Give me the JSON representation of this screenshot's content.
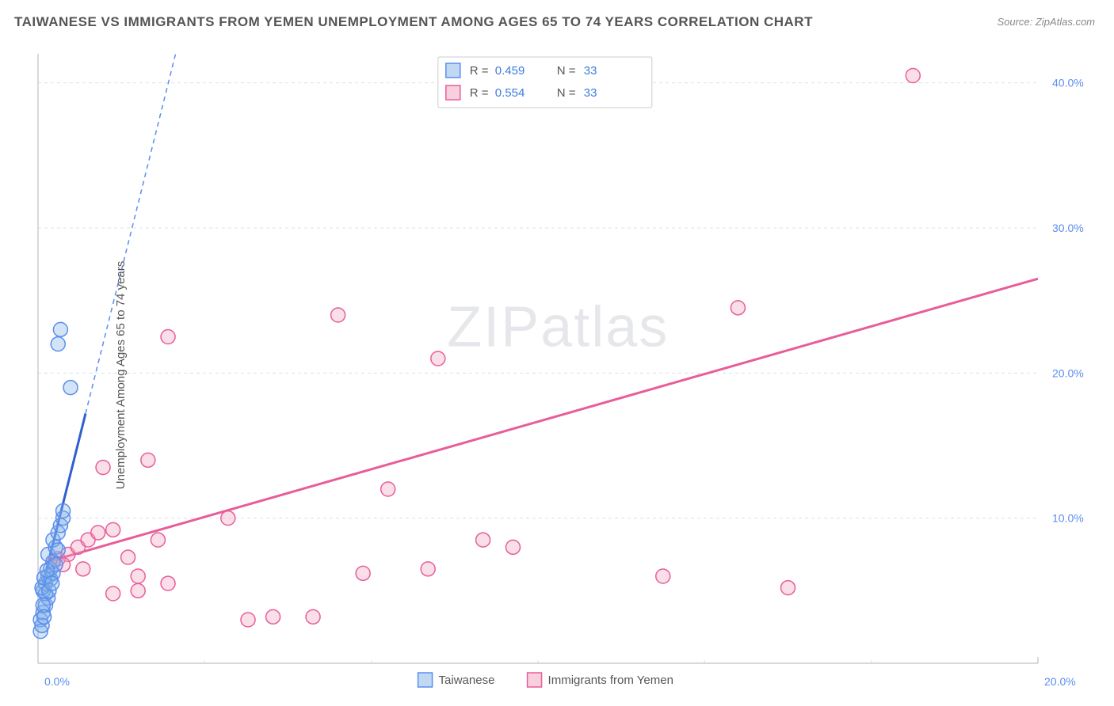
{
  "title": "TAIWANESE VS IMMIGRANTS FROM YEMEN UNEMPLOYMENT AMONG AGES 65 TO 74 YEARS CORRELATION CHART",
  "source": "Source: ZipAtlas.com",
  "ylabel": "Unemployment Among Ages 65 to 74 years",
  "watermark_part1": "ZIP",
  "watermark_part2": "atlas",
  "chart": {
    "type": "scatter",
    "background_color": "#ffffff",
    "grid_color": "#e0e0e0",
    "axis_color": "#cccccc",
    "tick_label_color": "#5b8def",
    "xlim": [
      0,
      20
    ],
    "ylim": [
      0,
      42
    ],
    "x_ticks": [
      0,
      20
    ],
    "x_tick_labels": [
      "0.0%",
      "20.0%"
    ],
    "x_minor_grid": [
      3.33,
      6.67,
      10,
      13.33,
      16.67
    ],
    "y_ticks": [
      10,
      20,
      30,
      40
    ],
    "y_tick_labels": [
      "10.0%",
      "20.0%",
      "30.0%",
      "40.0%"
    ],
    "marker_radius": 9,
    "series": [
      {
        "name": "Taiwanese",
        "color_fill": "rgba(130,177,230,0.35)",
        "color_stroke": "#5b8def",
        "R": 0.459,
        "N": 33,
        "trend": {
          "x0": 0.1,
          "y0": 5.5,
          "x1": 0.95,
          "y1": 17.2,
          "extend_to_y": 42
        },
        "points": [
          [
            0.05,
            3.0
          ],
          [
            0.1,
            3.5
          ],
          [
            0.15,
            4.0
          ],
          [
            0.2,
            4.5
          ],
          [
            0.1,
            5.0
          ],
          [
            0.15,
            5.5
          ],
          [
            0.2,
            6.0
          ],
          [
            0.25,
            6.5
          ],
          [
            0.3,
            7.0
          ],
          [
            0.2,
            7.5
          ],
          [
            0.35,
            8.0
          ],
          [
            0.3,
            8.5
          ],
          [
            0.4,
            9.0
          ],
          [
            0.45,
            9.5
          ],
          [
            0.5,
            10.0
          ],
          [
            0.25,
            5.8
          ],
          [
            0.3,
            6.2
          ],
          [
            0.35,
            6.8
          ],
          [
            0.15,
            4.8
          ],
          [
            0.1,
            4.0
          ],
          [
            0.5,
            10.5
          ],
          [
            0.4,
            7.8
          ],
          [
            0.65,
            19.0
          ],
          [
            0.45,
            23.0
          ],
          [
            0.4,
            22.0
          ],
          [
            0.08,
            5.2
          ],
          [
            0.12,
            5.9
          ],
          [
            0.18,
            6.4
          ],
          [
            0.22,
            5.0
          ],
          [
            0.28,
            5.5
          ],
          [
            0.05,
            2.2
          ],
          [
            0.08,
            2.6
          ],
          [
            0.12,
            3.2
          ]
        ]
      },
      {
        "name": "Immigrants from Yemen",
        "color_fill": "rgba(240,160,190,0.35)",
        "color_stroke": "#e85d9a",
        "R": 0.554,
        "N": 33,
        "trend": {
          "x0": 0.2,
          "y0": 7.0,
          "x1": 20.0,
          "y1": 26.5
        },
        "points": [
          [
            0.3,
            7.0
          ],
          [
            0.4,
            7.2
          ],
          [
            0.6,
            7.5
          ],
          [
            0.8,
            8.0
          ],
          [
            1.0,
            8.5
          ],
          [
            1.2,
            9.0
          ],
          [
            1.5,
            9.2
          ],
          [
            1.8,
            7.3
          ],
          [
            2.0,
            6.0
          ],
          [
            2.2,
            14.0
          ],
          [
            2.4,
            8.5
          ],
          [
            2.6,
            22.5
          ],
          [
            1.5,
            4.8
          ],
          [
            2.0,
            5.0
          ],
          [
            2.6,
            5.5
          ],
          [
            3.8,
            10.0
          ],
          [
            4.2,
            3.0
          ],
          [
            4.7,
            3.2
          ],
          [
            5.5,
            3.2
          ],
          [
            6.0,
            24.0
          ],
          [
            6.5,
            6.2
          ],
          [
            7.0,
            12.0
          ],
          [
            7.8,
            6.5
          ],
          [
            8.0,
            21.0
          ],
          [
            8.9,
            8.5
          ],
          [
            9.5,
            8.0
          ],
          [
            12.5,
            6.0
          ],
          [
            14.0,
            24.5
          ],
          [
            15.0,
            5.2
          ],
          [
            17.5,
            40.5
          ],
          [
            0.5,
            6.8
          ],
          [
            0.9,
            6.5
          ],
          [
            1.3,
            13.5
          ]
        ]
      }
    ],
    "top_legend": {
      "rows": [
        {
          "swatch_class": "swatch-blue",
          "R_label": "R =",
          "R": "0.459",
          "N_label": "N =",
          "N": "33"
        },
        {
          "swatch_class": "swatch-pink",
          "R_label": "R =",
          "R": "0.554",
          "N_label": "N =",
          "N": "33"
        }
      ]
    },
    "bottom_legend": {
      "items": [
        {
          "swatch_class": "swatch-blue",
          "label": "Taiwanese"
        },
        {
          "swatch_class": "swatch-pink",
          "label": "Immigrants from Yemen"
        }
      ]
    }
  }
}
